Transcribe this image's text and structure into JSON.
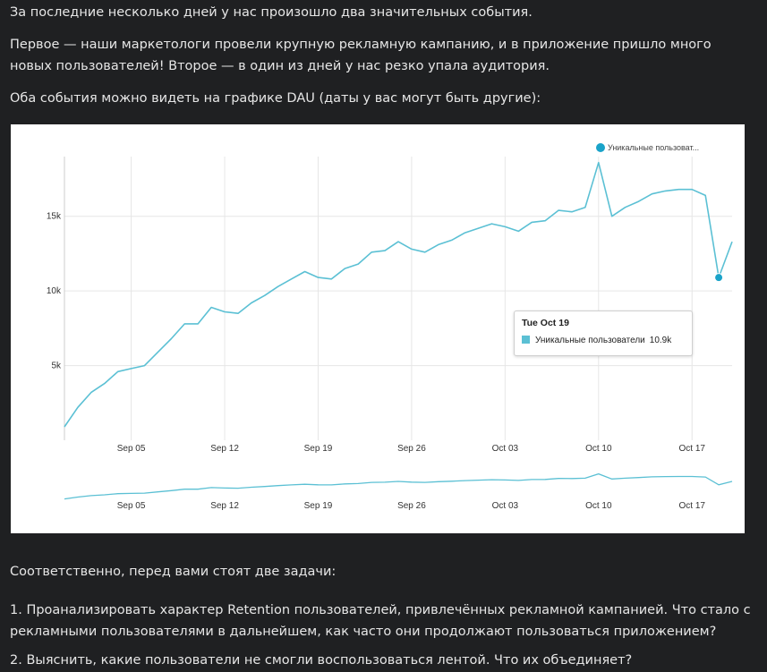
{
  "text": {
    "p1": "За последние несколько дней у нас произошло два значительных события.",
    "p2": "Первое — наши маркетологи провели крупную рекламную кампанию, и в приложение пришло много новых пользователей! Второе — в один из дней у нас резко упала аудитория.",
    "p3": "Оба события можно видеть на графике DAU (даты у вас могут быть другие):",
    "p4": "Соответственно, перед вами стоят две задачи:",
    "p5": "1. Проанализировать характер Retention пользователей, привлечённых рекламной кампанией. Что стало с рекламными пользователями в дальнейшем, как часто они продолжают пользоваться приложением?",
    "p6": "2. Выяснить, какие пользователи не смогли воспользоваться лентой. Что их объединяет?"
  },
  "chart_data": {
    "type": "line",
    "legend": {
      "label": "Уникальные пользоват...",
      "placement": "top-right",
      "color": "#1aa3c9"
    },
    "line_color": "#5bc0d4",
    "series": [
      {
        "name": "Уникальные пользователи",
        "x": [
          "2021-08-31",
          "2021-09-01",
          "2021-09-02",
          "2021-09-03",
          "2021-09-04",
          "2021-09-05",
          "2021-09-06",
          "2021-09-07",
          "2021-09-08",
          "2021-09-09",
          "2021-09-10",
          "2021-09-11",
          "2021-09-12",
          "2021-09-13",
          "2021-09-14",
          "2021-09-15",
          "2021-09-16",
          "2021-09-17",
          "2021-09-18",
          "2021-09-19",
          "2021-09-20",
          "2021-09-21",
          "2021-09-22",
          "2021-09-23",
          "2021-09-24",
          "2021-09-25",
          "2021-09-26",
          "2021-09-27",
          "2021-09-28",
          "2021-09-29",
          "2021-09-30",
          "2021-10-01",
          "2021-10-02",
          "2021-10-03",
          "2021-10-04",
          "2021-10-05",
          "2021-10-06",
          "2021-10-07",
          "2021-10-08",
          "2021-10-09",
          "2021-10-10",
          "2021-10-11",
          "2021-10-12",
          "2021-10-13",
          "2021-10-14",
          "2021-10-15",
          "2021-10-16",
          "2021-10-17",
          "2021-10-18",
          "2021-10-19",
          "2021-10-20"
        ],
        "values": [
          900,
          2200,
          3200,
          3800,
          4600,
          4800,
          5000,
          5900,
          6800,
          7800,
          7800,
          8900,
          8600,
          8500,
          9200,
          9700,
          10300,
          10800,
          11300,
          10900,
          10800,
          11500,
          11800,
          12600,
          12700,
          13300,
          12800,
          12600,
          13100,
          13400,
          13900,
          14200,
          14500,
          14300,
          14000,
          14600,
          14700,
          15400,
          15300,
          15600,
          18600,
          15000,
          15600,
          16000,
          16500,
          16700,
          16800,
          16800,
          16400,
          10900,
          13300
        ]
      }
    ],
    "x_ticks": [
      "Sep 05",
      "Sep 12",
      "Sep 19",
      "Sep 26",
      "Oct 03",
      "Oct 10",
      "Oct 17"
    ],
    "y_ticks": [
      "5k",
      "10k",
      "15k"
    ],
    "ylim": [
      0,
      19000
    ],
    "grid": true,
    "highlight_index": 49,
    "tooltip": {
      "title": "Tue Oct 19",
      "series_label": "Уникальные пользователи",
      "value": "10.9k"
    },
    "navigator_ticks": [
      "Sep 05",
      "Sep 12",
      "Sep 19",
      "Sep 26",
      "Oct 03",
      "Oct 10",
      "Oct 17"
    ]
  }
}
